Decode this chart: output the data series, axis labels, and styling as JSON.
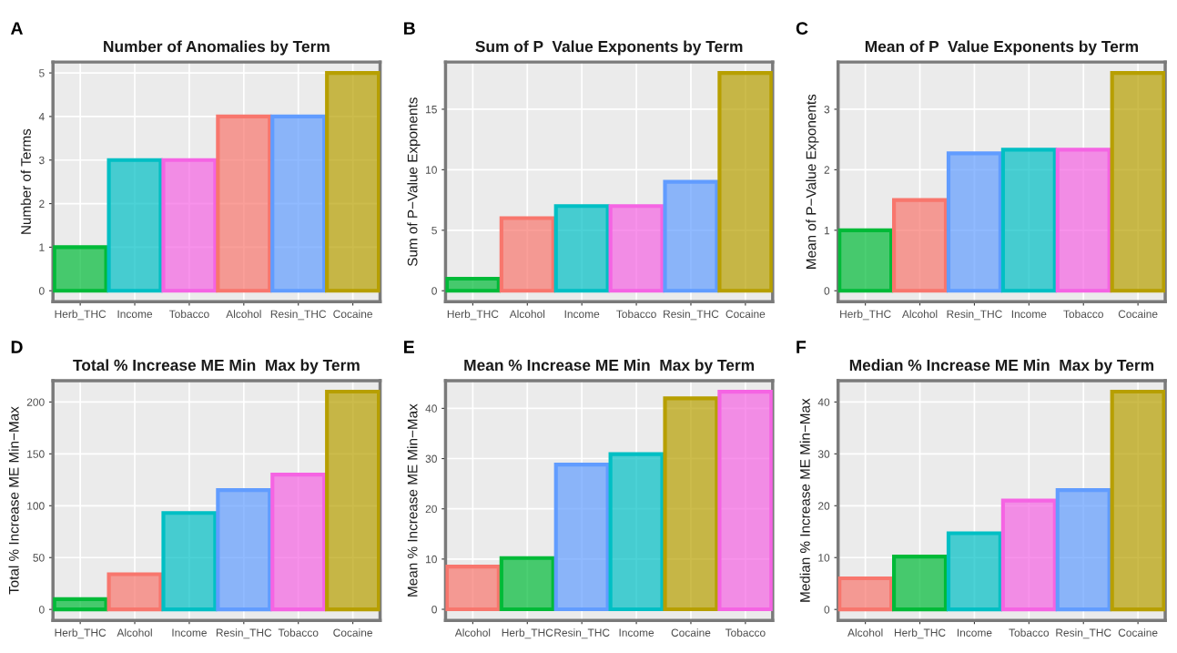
{
  "chart_data": [
    {
      "type": "bar",
      "annotations": [
        "A"
      ],
      "title": "Number of Anomalies by Term",
      "ylabel": "Number of Terms",
      "categories": [
        "Herb_THC",
        "Income",
        "Tobacco",
        "Alcohol",
        "Resin_THC",
        "Cocaine"
      ],
      "values": [
        1,
        3,
        3,
        4,
        4,
        5
      ],
      "colors": [
        "#00ba38",
        "#00bfc4",
        "#f564e3",
        "#f8766d",
        "#619cff",
        "#b79f00"
      ],
      "ylim": [
        -0.25,
        5.25
      ],
      "yticks": [
        0,
        1,
        2,
        3,
        4,
        5
      ],
      "grid": true
    },
    {
      "type": "bar",
      "annotations": [
        "B"
      ],
      "title": "Sum of P  Value Exponents by Term",
      "ylabel": "Sum of P−Value Exponents",
      "categories": [
        "Herb_THC",
        "Alcohol",
        "Income",
        "Tobacco",
        "Resin_THC",
        "Cocaine"
      ],
      "values": [
        1,
        6,
        7,
        7,
        9,
        18
      ],
      "colors": [
        "#00ba38",
        "#f8766d",
        "#00bfc4",
        "#f564e3",
        "#619cff",
        "#b79f00"
      ],
      "ylim": [
        -0.9,
        18.9
      ],
      "yticks": [
        0,
        5,
        10,
        15
      ],
      "grid": true
    },
    {
      "type": "bar",
      "annotations": [
        "C"
      ],
      "title": "Mean of P  Value Exponents by Term",
      "ylabel": "Mean of P−Value Exponents",
      "categories": [
        "Herb_THC",
        "Alcohol",
        "Resin_THC",
        "Income",
        "Tobacco",
        "Cocaine"
      ],
      "values": [
        1,
        1.5,
        2.27,
        2.33,
        2.33,
        3.6
      ],
      "colors": [
        "#00ba38",
        "#f8766d",
        "#619cff",
        "#00bfc4",
        "#f564e3",
        "#b79f00"
      ],
      "ylim": [
        -0.18,
        3.78
      ],
      "yticks": [
        0,
        1,
        2,
        3
      ],
      "grid": true
    },
    {
      "type": "bar",
      "annotations": [
        "D"
      ],
      "title": "Total % Increase ME Min  Max by Term",
      "ylabel": "Total % Increase ME Min−Max",
      "categories": [
        "Herb_THC",
        "Alcohol",
        "Income",
        "Resin_THC",
        "Tobacco",
        "Cocaine"
      ],
      "values": [
        10,
        34,
        93,
        115,
        130,
        210
      ],
      "colors": [
        "#00ba38",
        "#f8766d",
        "#00bfc4",
        "#619cff",
        "#f564e3",
        "#b79f00"
      ],
      "ylim": [
        -10.5,
        220.5
      ],
      "yticks": [
        0,
        50,
        100,
        150,
        200
      ],
      "grid": true
    },
    {
      "type": "bar",
      "annotations": [
        "E"
      ],
      "title": "Mean % Increase ME Min  Max by Term",
      "ylabel": "Mean % Increase ME Min−Max",
      "categories": [
        "Alcohol",
        "Herb_THC",
        "Resin_THC",
        "Income",
        "Cocaine",
        "Tobacco"
      ],
      "values": [
        8.5,
        10.2,
        28.8,
        30.9,
        42,
        43.3
      ],
      "colors": [
        "#f8766d",
        "#00ba38",
        "#619cff",
        "#00bfc4",
        "#b79f00",
        "#f564e3"
      ],
      "ylim": [
        -2.2,
        45.5
      ],
      "yticks": [
        0,
        10,
        20,
        30,
        40
      ],
      "grid": true
    },
    {
      "type": "bar",
      "annotations": [
        "F"
      ],
      "title": "Median % Increase ME Min  Max by Term",
      "ylabel": "Median % Increase ME Min−Max",
      "categories": [
        "Alcohol",
        "Herb_THC",
        "Income",
        "Tobacco",
        "Resin_THC",
        "Cocaine"
      ],
      "values": [
        6,
        10.2,
        14.7,
        21,
        23,
        42
      ],
      "colors": [
        "#f8766d",
        "#00ba38",
        "#00bfc4",
        "#f564e3",
        "#619cff",
        "#b79f00"
      ],
      "ylim": [
        -2.1,
        44.1
      ],
      "yticks": [
        0,
        10,
        20,
        30,
        40
      ],
      "grid": true
    }
  ]
}
